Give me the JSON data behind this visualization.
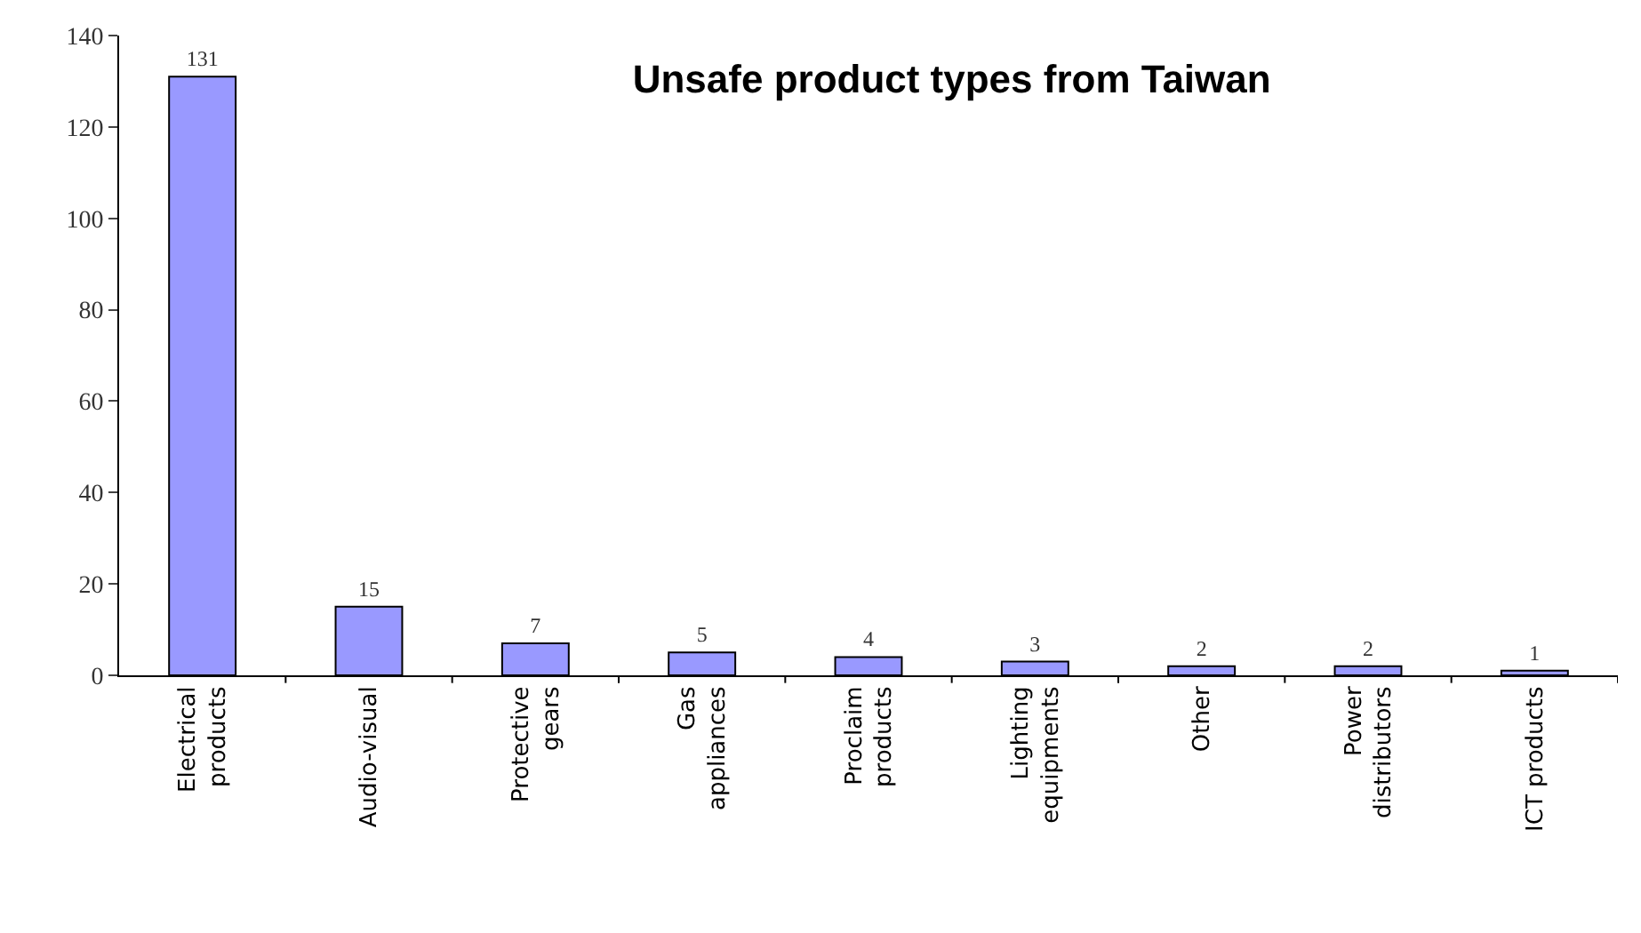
{
  "chart_data": {
    "type": "bar",
    "title": "Unsafe product types from Taiwan",
    "categories": [
      "Electrical products",
      "Audio-visual",
      "Protective gears",
      "Gas appliances",
      "Proclaim products",
      "Lighting equipments",
      "Other",
      "Power distributors",
      "ICT products"
    ],
    "values": [
      131,
      15,
      7,
      5,
      4,
      3,
      2,
      2,
      1
    ],
    "color": "#9999ff",
    "ylim": [
      0,
      140
    ],
    "yticks": [
      0,
      20,
      40,
      60,
      80,
      100,
      120,
      140
    ],
    "data_labels": true
  }
}
